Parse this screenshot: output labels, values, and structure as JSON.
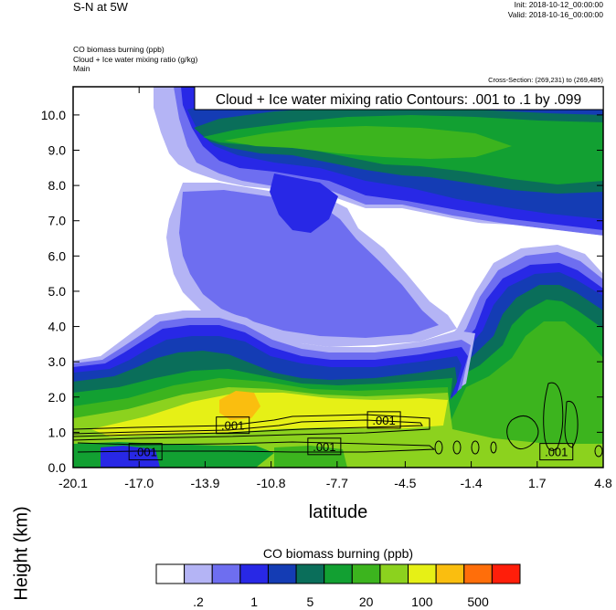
{
  "header": {
    "title_left": "S-N at 5W",
    "init": "Init: 2018-10-12_00:00:00",
    "valid": "Valid: 2018-10-16_00:00:00",
    "fields": [
      "CO biomass burning   (ppb)",
      "Cloud + Ice water mixing ratio   (g/kg)",
      "Main"
    ],
    "cross_section": "Cross-Section: (269,231) to (269,485)"
  },
  "colors": {
    "levels": [
      "#ffffff",
      "#b4b4f5",
      "#6e6ef0",
      "#2828e6",
      "#143cb4",
      "#0a6e5a",
      "#12a032",
      "#3cb41e",
      "#8cd21e",
      "#e6f016",
      "#fabe0f",
      "#ff6e0a",
      "#ff1e0a"
    ]
  },
  "chart_data": {
    "type": "heatmap",
    "title": "Cloud + Ice water mixing ratio Contours: .001 to .1 by .099",
    "xlabel": "latitude",
    "ylabel": "Height (km)",
    "x_ticks": [
      "-20.1",
      "-17.0",
      "-13.9",
      "-10.8",
      "-7.7",
      "-4.5",
      "-1.4",
      "1.7",
      "4.8"
    ],
    "x_tick_values": [
      -20.1,
      -17.0,
      -13.9,
      -10.8,
      -7.7,
      -4.5,
      -1.4,
      1.7,
      4.8
    ],
    "y_ticks": [
      "0.0",
      "1.0",
      "2.0",
      "3.0",
      "4.0",
      "5.0",
      "6.0",
      "7.0",
      "8.0",
      "9.0",
      "10.0"
    ],
    "y_tick_values": [
      0,
      1,
      2,
      3,
      4,
      5,
      6,
      7,
      8,
      9,
      10
    ],
    "xlim": [
      -20.1,
      4.8
    ],
    "ylim": [
      0,
      10.8
    ],
    "contour_labels": [
      {
        "text": ".001",
        "x": -12.6,
        "y": 1.2
      },
      {
        "text": ".001",
        "x": -5.5,
        "y": 1.35
      },
      {
        "text": ".001",
        "x": -16.7,
        "y": 0.45
      },
      {
        "text": ".001",
        "x": -8.3,
        "y": 0.6
      },
      {
        "text": ".001",
        "x": 2.6,
        "y": 0.45
      }
    ],
    "colorbar": {
      "title": "CO biomass burning  (ppb)",
      "labels": [
        ".2",
        "1",
        "5",
        "20",
        "100",
        "500"
      ],
      "label_positions": [
        1.5,
        3.5,
        5.5,
        7.5,
        9.5,
        11.5
      ],
      "n_boxes": 13
    }
  }
}
